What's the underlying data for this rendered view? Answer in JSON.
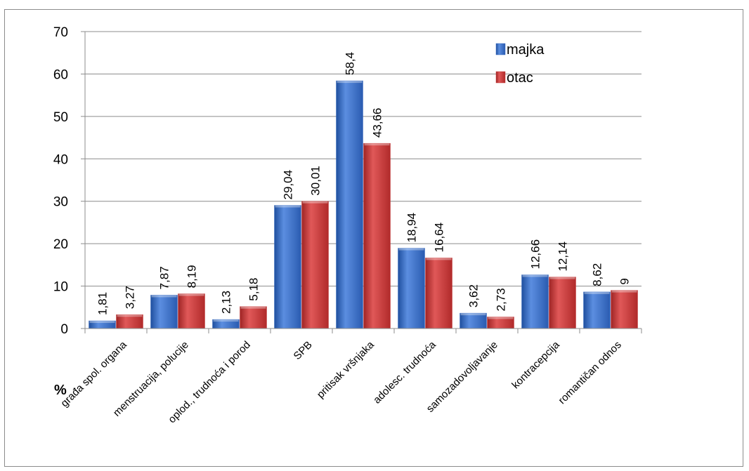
{
  "chart_data": {
    "type": "bar",
    "categories": [
      "građa spol. organa",
      "menstruacija, polucije",
      "oplod., trudnoća i porod",
      "SPB",
      "pritisak vršnjaka",
      "adolesc. trudnoća",
      "samozadovoljavanje",
      "kontracepcija",
      "romantičan odnos"
    ],
    "series": [
      {
        "name": "majka",
        "values": [
          1.81,
          7.87,
          2.13,
          29.04,
          58.4,
          18.94,
          3.62,
          12.66,
          8.62
        ],
        "labels": [
          "1,81",
          "7,87",
          "2,13",
          "29,04",
          "58,4",
          "18,94",
          "3,62",
          "12,66",
          "8,62"
        ],
        "color": "#3a6cc2"
      },
      {
        "name": "otac",
        "values": [
          3.27,
          8.19,
          5.18,
          30.01,
          43.66,
          16.64,
          2.73,
          12.14,
          9
        ],
        "labels": [
          "3,27",
          "8,19",
          "5,18",
          "30,01",
          "43,66",
          "16,64",
          "2,73",
          "12,14",
          "9"
        ],
        "color": "#c43a3a"
      }
    ],
    "yticks": [
      "0",
      "10",
      "20",
      "30",
      "40",
      "50",
      "60",
      "70"
    ],
    "ylim": [
      0,
      70
    ],
    "ylabel": "%",
    "grid": true,
    "legend_position": "top-right"
  }
}
